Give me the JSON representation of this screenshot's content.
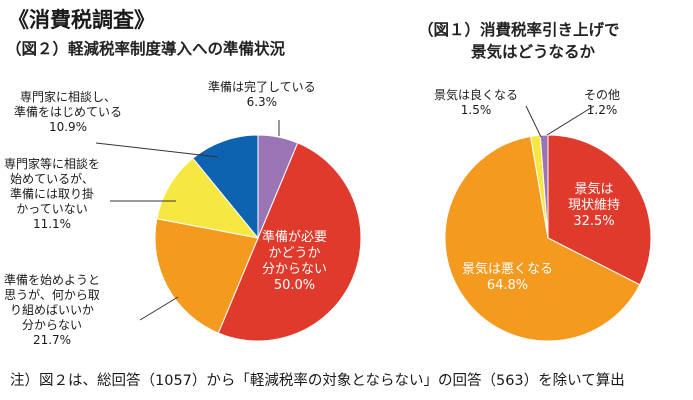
{
  "page_title": "《消費税調査》",
  "footnote": "注）図２は、総回答（1057）から「軽減税率の対象とならない」の回答（563）を除いて算出",
  "chart_data": [
    {
      "type": "pie",
      "title": "（図２）軽減税率制度導入への準備状況",
      "slices": [
        {
          "label_lines": [
            "準備は完了している"
          ],
          "value": 6.3,
          "value_text": "6.3%",
          "color": "#9b74b6"
        },
        {
          "label_lines": [
            "準備が必要",
            "かどうか",
            "分からない"
          ],
          "value": 50.0,
          "value_text": "50.0%",
          "color": "#e03a2c"
        },
        {
          "label_lines": [
            "準備を始めようと",
            "思うが、何から取",
            "り組めばいいか",
            "分からない"
          ],
          "value": 21.7,
          "value_text": "21.7%",
          "color": "#f39a1f"
        },
        {
          "label_lines": [
            "専門家等に相談を",
            "始めているが、",
            "準備には取り掛",
            "かっていない"
          ],
          "value": 11.1,
          "value_text": "11.1%",
          "color": "#f7e743"
        },
        {
          "label_lines": [
            "専門家に相談し、",
            "準備をはじめている"
          ],
          "value": 10.9,
          "value_text": "10.9%",
          "color": "#0d63b0"
        }
      ]
    },
    {
      "type": "pie",
      "title_lines": [
        "（図１）消費税率引き上げで",
        "景気はどうなるか"
      ],
      "slices": [
        {
          "label_lines": [
            "景気は",
            "現状維持"
          ],
          "value": 32.5,
          "value_text": "32.5%",
          "color": "#e03a2c"
        },
        {
          "label_lines": [
            "景気は悪くなる"
          ],
          "value": 64.8,
          "value_text": "64.8%",
          "color": "#f39a1f"
        },
        {
          "label_lines": [
            "景気は良くなる"
          ],
          "value": 1.5,
          "value_text": "1.5%",
          "color": "#f7e743"
        },
        {
          "label_lines": [
            "その他"
          ],
          "value": 1.2,
          "value_text": "1.2%",
          "color": "#9b74b6"
        }
      ]
    }
  ]
}
